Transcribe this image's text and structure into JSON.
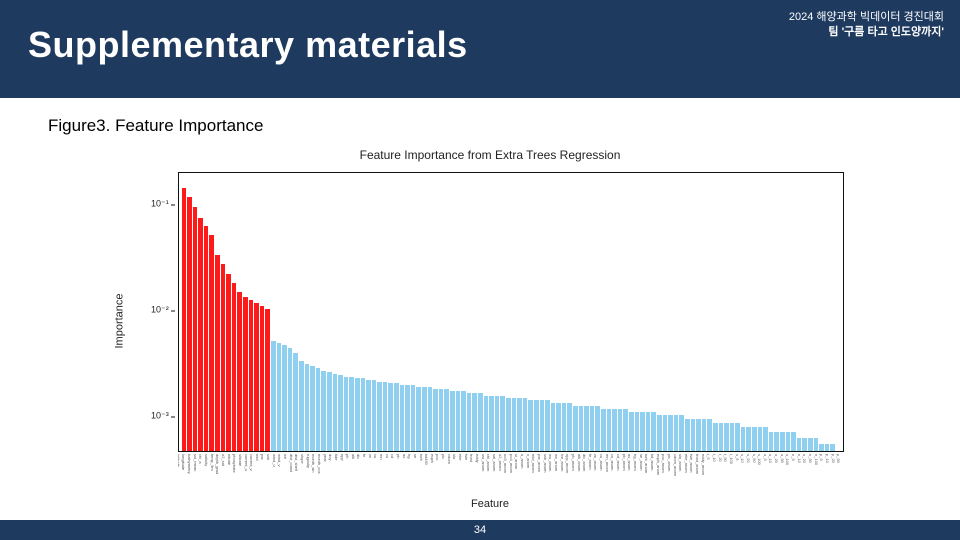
{
  "header": {
    "title": "Supplementary materials",
    "event": "2024 해양과학 빅데이터 경진대회",
    "team": "팀 '구름 타고 인도양까지'"
  },
  "figure": {
    "caption": "Figure3. Feature Importance",
    "chart_title": "Feature Importance from Extra Trees Regression",
    "ylabel": "Importance",
    "xlabel": "Feature",
    "type": "bar",
    "yscale": "log",
    "ylim_min": 0.0006,
    "ylim_max": 0.25,
    "yticks": [
      {
        "v": 0.001,
        "label": "10⁻³"
      },
      {
        "v": 0.01,
        "label": "10⁻²"
      },
      {
        "v": 0.1,
        "label": "10⁻¹"
      }
    ],
    "background_color": "#ffffff",
    "border_color": "#111111",
    "highlight_color": "#ff1a1a",
    "normal_color": "#8fd0f0",
    "highlight_count": 16,
    "values": [
      0.18,
      0.15,
      0.12,
      0.095,
      0.08,
      0.065,
      0.042,
      0.035,
      0.028,
      0.023,
      0.019,
      0.017,
      0.016,
      0.015,
      0.014,
      0.013,
      0.0065,
      0.0062,
      0.006,
      0.0056,
      0.005,
      0.0042,
      0.004,
      0.0038,
      0.0036,
      0.0034,
      0.0033,
      0.0032,
      0.0031,
      0.003,
      0.003,
      0.0029,
      0.0029,
      0.0028,
      0.0028,
      0.0027,
      0.0027,
      0.0026,
      0.0026,
      0.0025,
      0.0025,
      0.0025,
      0.0024,
      0.0024,
      0.0024,
      0.0023,
      0.0023,
      0.0023,
      0.0022,
      0.0022,
      0.0022,
      0.0021,
      0.0021,
      0.0021,
      0.002,
      0.002,
      0.002,
      0.002,
      0.0019,
      0.0019,
      0.0019,
      0.0019,
      0.0018,
      0.0018,
      0.0018,
      0.0018,
      0.0017,
      0.0017,
      0.0017,
      0.0017,
      0.0016,
      0.0016,
      0.0016,
      0.0016,
      0.0016,
      0.0015,
      0.0015,
      0.0015,
      0.0015,
      0.0015,
      0.0014,
      0.0014,
      0.0014,
      0.0014,
      0.0014,
      0.0013,
      0.0013,
      0.0013,
      0.0013,
      0.0013,
      0.0012,
      0.0012,
      0.0012,
      0.0012,
      0.0012,
      0.0011,
      0.0011,
      0.0011,
      0.0011,
      0.0011,
      0.001,
      0.001,
      0.001,
      0.001,
      0.001,
      0.0009,
      0.0009,
      0.0009,
      0.0009,
      0.0009,
      0.0008,
      0.0008,
      0.0008,
      0.0008,
      0.0007,
      0.0007,
      0.0007,
      0.0006
    ],
    "feature_labels": [
      "latitude",
      "longitude",
      "bathymetry",
      "sst_mean",
      "chl_a",
      "salinity",
      "temp_5m",
      "depth_grad",
      "o2_sat",
      "nitrate",
      "phosphate",
      "silicate",
      "current_u",
      "current_v",
      "mld",
      "par",
      "ssh",
      "wind_u",
      "wind_v",
      "ice",
      "dist_coast",
      "dist_shelf",
      "slope",
      "rugosity",
      "month_sin",
      "month_cos",
      "year",
      "doy",
      "tide",
      "npp",
      "ph",
      "alk",
      "dic",
      "fe",
      "zn",
      "cu",
      "mn",
      "co",
      "cd",
      "pb",
      "as",
      "hg",
      "se",
      "turb",
      "kd490",
      "euph",
      "poc",
      "pic",
      "cdom",
      "sla",
      "eke",
      "fsle",
      "front",
      "eddy",
      "sst_anom",
      "chl_anom",
      "sal_anom",
      "o2_anom",
      "no3_anom",
      "po4_anom",
      "si_anom",
      "u_anom",
      "v_anom",
      "mld_anom",
      "par_anom",
      "ssh_anom",
      "wu_anom",
      "wv_anom",
      "ice_anom",
      "npp_anom",
      "ph_anom",
      "alk_anom",
      "dic_anom",
      "fe_anom",
      "zn_anom",
      "cu_anom",
      "mn_anom",
      "co_anom",
      "cd_anom",
      "pb_anom",
      "as_anom",
      "hg_anom",
      "se_anom",
      "turb_anom",
      "kd_anom",
      "euph_anom",
      "poc_anom",
      "pic_anom",
      "cdom_anom",
      "sla_anom",
      "eke_anom",
      "fsle_anom",
      "front_anom",
      "eddy_anom",
      "t_5",
      "t_10",
      "t_20",
      "t_50",
      "t_100",
      "s_5",
      "s_10",
      "s_20",
      "s_50",
      "s_100",
      "o_5",
      "o_10",
      "o_20",
      "o_50",
      "o_100",
      "n_5",
      "n_10",
      "n_20",
      "n_50",
      "n_100",
      "p_5",
      "p_10",
      "p_20",
      "p_50"
    ]
  },
  "footer": {
    "page": "34"
  }
}
